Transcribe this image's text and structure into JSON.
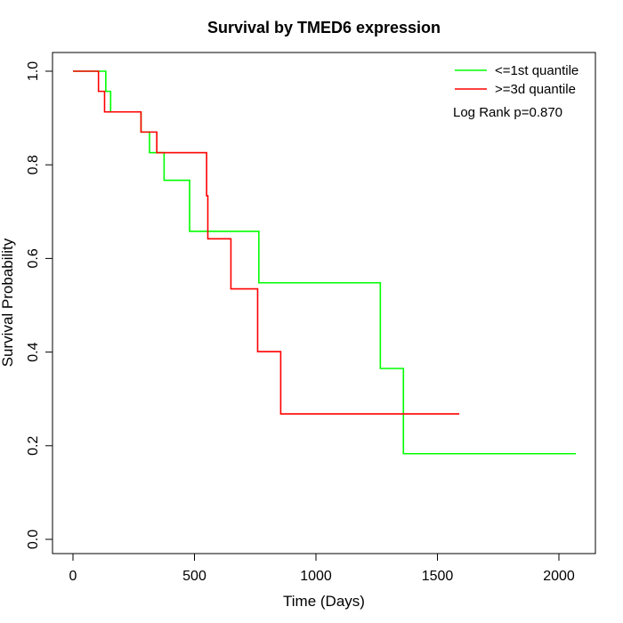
{
  "chart_data": {
    "type": "line",
    "step": true,
    "title": "Survival by TMED6 expression",
    "xlabel": "Time (Days)",
    "ylabel": "Survival Probability",
    "xlim": [
      0,
      2070
    ],
    "ylim": [
      0,
      1
    ],
    "x_ticks": [
      0,
      500,
      1000,
      1500,
      2000
    ],
    "y_ticks": [
      0.0,
      0.2,
      0.4,
      0.6,
      0.8,
      1.0
    ],
    "x_tick_labels": [
      "0",
      "500",
      "1000",
      "1500",
      "2000"
    ],
    "y_tick_labels": [
      "0.0",
      "0.2",
      "0.4",
      "0.6",
      "0.8",
      "1.0"
    ],
    "grid": false,
    "legend_position": "top-right",
    "annotation": "Log Rank p=0.870",
    "series": [
      {
        "name": "<=1st quantile",
        "color": "#00ff00",
        "x": [
          0,
          135,
          155,
          280,
          315,
          375,
          480,
          765,
          1265,
          1360,
          2070
        ],
        "y": [
          1.0,
          0.957,
          0.913,
          0.87,
          0.826,
          0.767,
          0.658,
          0.548,
          0.365,
          0.183,
          0.183
        ]
      },
      {
        "name": ">=3d quantile",
        "color": "#ff0000",
        "x": [
          0,
          105,
          130,
          280,
          345,
          550,
          555,
          650,
          760,
          855,
          1590
        ],
        "y": [
          1.0,
          0.957,
          0.913,
          0.87,
          0.826,
          0.734,
          0.642,
          0.535,
          0.401,
          0.268,
          0.268
        ]
      }
    ]
  }
}
